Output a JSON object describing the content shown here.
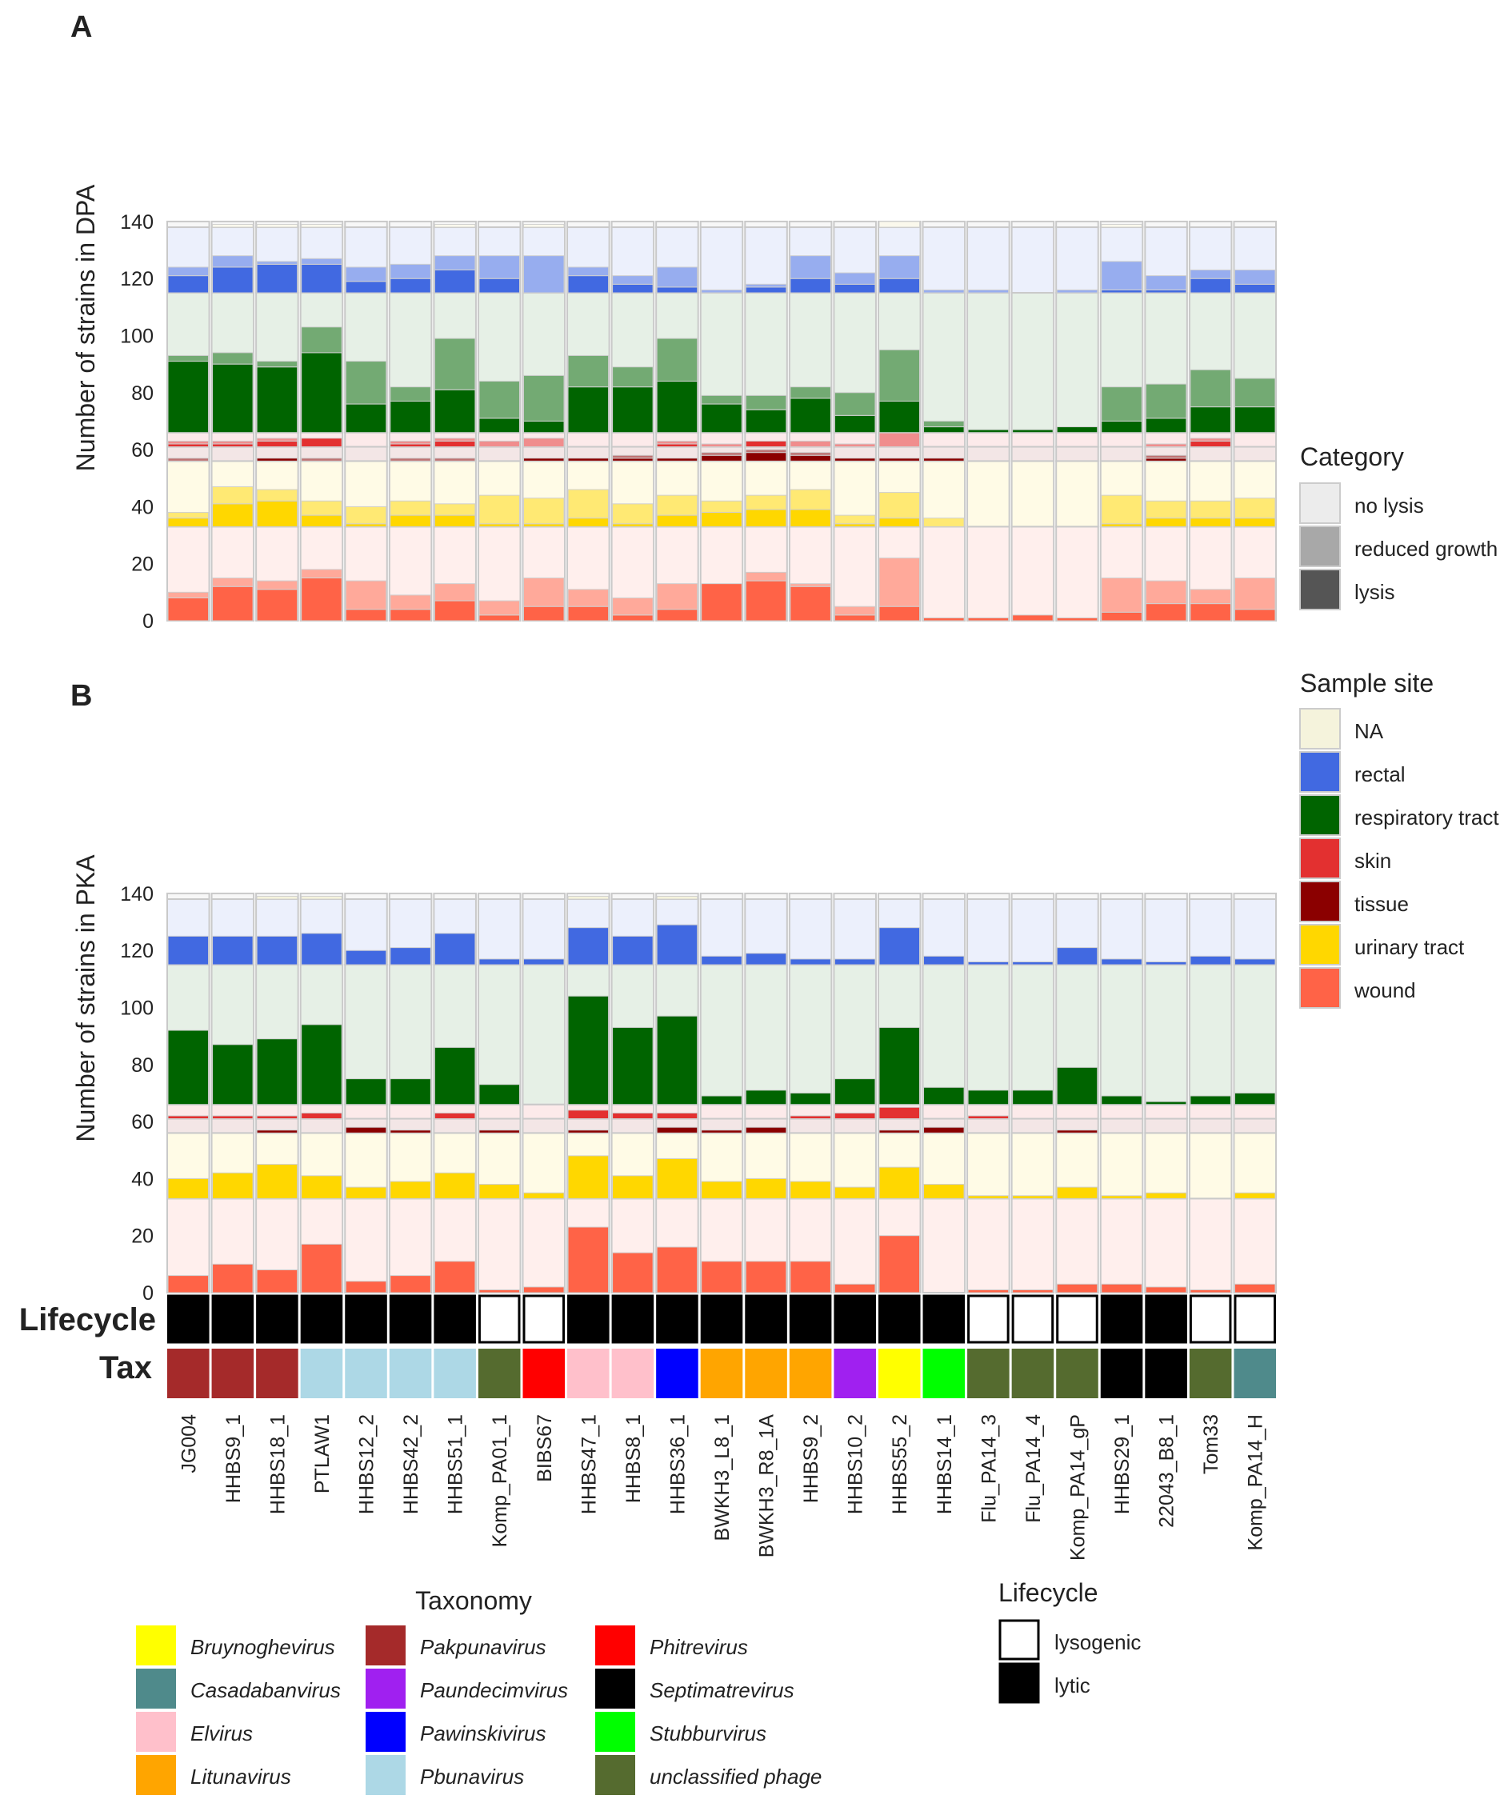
{
  "panels": [
    {
      "label": "A",
      "ylabel": "Number of strains in DPA"
    },
    {
      "label": "B",
      "ylabel": "Number of strains in PKA"
    }
  ],
  "row_labels": {
    "lifecycle": "Lifecycle",
    "tax": "Tax"
  },
  "legends": {
    "category": {
      "title": "Category",
      "items": [
        {
          "label": "no lysis",
          "color": "#ececec"
        },
        {
          "label": "reduced growth",
          "color": "#a8a8a8"
        },
        {
          "label": "lysis",
          "color": "#555555"
        }
      ]
    },
    "sample_site": {
      "title": "Sample site",
      "items": [
        {
          "label": "NA",
          "color": "#f5f3dc"
        },
        {
          "label": "rectal",
          "color": "#4169e1"
        },
        {
          "label": "respiratory tract",
          "color": "#006400"
        },
        {
          "label": "skin",
          "color": "#e33030"
        },
        {
          "label": "tissue",
          "color": "#8b0000"
        },
        {
          "label": "urinary tract",
          "color": "#ffd700"
        },
        {
          "label": "wound",
          "color": "#ff6347"
        }
      ]
    },
    "taxonomy": {
      "title": "Taxonomy",
      "items": [
        {
          "label": "Bruynoghevirus",
          "color": "#ffff00"
        },
        {
          "label": "Casadabanvirus",
          "color": "#4f8a8b"
        },
        {
          "label": "Elvirus",
          "color": "#ffc0cb"
        },
        {
          "label": "Litunavirus",
          "color": "#ffa500"
        },
        {
          "label": "Pakpunavirus",
          "color": "#a52a2a"
        },
        {
          "label": "Paundecimvirus",
          "color": "#a020f0"
        },
        {
          "label": "Pawinskivirus",
          "color": "#0000ff"
        },
        {
          "label": "Pbunavirus",
          "color": "#add8e6"
        },
        {
          "label": "Phitrevirus",
          "color": "#ff0000"
        },
        {
          "label": "Septimatrevirus",
          "color": "#000000"
        },
        {
          "label": "Stubburvirus",
          "color": "#00ff00"
        },
        {
          "label": "unclassified phage",
          "color": "#556b2f"
        }
      ]
    },
    "lifecycle": {
      "title": "Lifecycle",
      "items": [
        {
          "label": "lysogenic",
          "color": "#ffffff"
        },
        {
          "label": "lytic",
          "color": "#000000"
        }
      ]
    }
  },
  "chart_data": {
    "type": "bar",
    "subtype": "stacked-faceted",
    "ylim": [
      0,
      140
    ],
    "yticks": [
      0,
      20,
      40,
      60,
      80,
      100,
      120,
      140
    ],
    "site_order": [
      "wound",
      "urinary tract",
      "tissue",
      "skin",
      "respiratory tract",
      "rectal",
      "NA"
    ],
    "site_totals": {
      "wound": 33,
      "urinary tract": 23,
      "tissue": 5,
      "skin": 5,
      "respiratory tract": 49,
      "rectal": 23,
      "NA": 2
    },
    "categories": [
      "JG004",
      "HHBS9_1",
      "HHBS18_1",
      "PTLAW1",
      "HHBS12_2",
      "HHBS42_2",
      "HHBS51_1",
      "Komp_PA01_1",
      "BIBS67",
      "HHBS47_1",
      "HHBS8_1",
      "HHBS36_1",
      "BWKH3_L8_1",
      "BWKH3_R8_1A",
      "HHBS9_2",
      "HHBS10_2",
      "HHBS55_2",
      "HHBS14_1",
      "Flu_PA14_3",
      "Flu_PA14_4",
      "Komp_PA14_gP",
      "HHBS29_1",
      "22043_B8_1",
      "Tom33",
      "Komp_PA14_H"
    ],
    "label_colors": [
      "#3a8fbf",
      "#3a8fbf",
      "#3a8fbf",
      "#3a8fbf",
      "#3a8fbf",
      "#3a8fbf",
      "#3a8fbf",
      "#3a8fbf",
      "#3a8fbf",
      "#6a2c91",
      "#6a2c91",
      "#6a2c91",
      "#3c6e1f",
      "#3c6e1f",
      "#3c6e1f",
      "#3c6e1f",
      "#3c6e1f",
      "#3c6e1f",
      "#3c6e1f",
      "#3c6e1f",
      "#3c6e1f",
      "#8b1a1a",
      "#8b1a1a",
      "#8b1a1a",
      "#8b1a1a"
    ],
    "lifecycle": [
      "lytic",
      "lytic",
      "lytic",
      "lytic",
      "lytic",
      "lytic",
      "lytic",
      "lysogenic",
      "lysogenic",
      "lytic",
      "lytic",
      "lytic",
      "lytic",
      "lytic",
      "lytic",
      "lytic",
      "lytic",
      "lytic",
      "lysogenic",
      "lysogenic",
      "lysogenic",
      "lytic",
      "lytic",
      "lysogenic",
      "lysogenic"
    ],
    "taxonomy": [
      "Pakpunavirus",
      "Pakpunavirus",
      "Pakpunavirus",
      "Pbunavirus",
      "Pbunavirus",
      "Pbunavirus",
      "Pbunavirus",
      "unclassified phage",
      "Phitrevirus",
      "Elvirus",
      "Elvirus",
      "Pawinskivirus",
      "Litunavirus",
      "Litunavirus",
      "Litunavirus",
      "Paundecimvirus",
      "Bruynoghevirus",
      "Stubburvirus",
      "unclassified phage",
      "unclassified phage",
      "unclassified phage",
      "Septimatrevirus",
      "Septimatrevirus",
      "unclassified phage",
      "Casadabanvirus"
    ],
    "panel_A_DPA": {
      "wound": {
        "lysis": [
          8,
          12,
          11,
          15,
          4,
          4,
          7,
          2,
          5,
          5,
          2,
          4,
          13,
          14,
          12,
          2,
          5,
          1,
          1,
          2,
          1,
          3,
          6,
          6,
          4
        ],
        "reduced": [
          2,
          3,
          3,
          3,
          10,
          5,
          6,
          5,
          10,
          6,
          6,
          9,
          0,
          3,
          1,
          3,
          17,
          0,
          0,
          0,
          0,
          12,
          8,
          5,
          11
        ]
      },
      "urinary tract": {
        "lysis": [
          3,
          8,
          9,
          4,
          1,
          4,
          4,
          1,
          1,
          3,
          1,
          4,
          5,
          6,
          6,
          1,
          3,
          0,
          0,
          0,
          0,
          1,
          3,
          3,
          3
        ],
        "reduced": [
          2,
          6,
          4,
          5,
          6,
          5,
          4,
          10,
          9,
          10,
          7,
          7,
          4,
          5,
          7,
          3,
          9,
          3,
          0,
          0,
          0,
          10,
          6,
          6,
          7
        ]
      },
      "tissue": {
        "lysis": [
          0,
          0,
          1,
          0,
          0,
          0,
          0,
          0,
          1,
          1,
          1,
          1,
          2,
          3,
          2,
          1,
          1,
          1,
          0,
          0,
          0,
          0,
          1,
          0,
          0
        ],
        "reduced": [
          1,
          0,
          0,
          1,
          0,
          1,
          1,
          0,
          0,
          0,
          1,
          0,
          1,
          1,
          1,
          0,
          0,
          0,
          0,
          0,
          0,
          0,
          1,
          0,
          0
        ]
      },
      "skin": {
        "lysis": [
          1,
          1,
          2,
          3,
          0,
          1,
          2,
          0,
          0,
          0,
          0,
          1,
          0,
          2,
          0,
          0,
          0,
          0,
          0,
          0,
          0,
          0,
          0,
          2,
          0
        ],
        "reduced": [
          1,
          1,
          1,
          0,
          0,
          1,
          1,
          2,
          3,
          0,
          0,
          1,
          1,
          0,
          2,
          1,
          5,
          0,
          0,
          0,
          0,
          0,
          1,
          1,
          0
        ]
      },
      "respiratory tract": {
        "lysis": [
          25,
          24,
          23,
          28,
          10,
          11,
          15,
          5,
          4,
          16,
          16,
          18,
          10,
          8,
          12,
          6,
          11,
          2,
          1,
          1,
          2,
          4,
          5,
          9,
          9
        ],
        "reduced": [
          2,
          4,
          2,
          9,
          15,
          5,
          18,
          13,
          16,
          11,
          7,
          15,
          3,
          5,
          4,
          8,
          18,
          2,
          0,
          0,
          0,
          12,
          12,
          13,
          10
        ]
      },
      "rectal": {
        "lysis": [
          6,
          9,
          10,
          10,
          4,
          5,
          8,
          5,
          0,
          6,
          3,
          2,
          0,
          2,
          5,
          3,
          5,
          0,
          0,
          0,
          0,
          1,
          1,
          5,
          3
        ],
        "reduced": [
          3,
          4,
          1,
          2,
          5,
          5,
          5,
          8,
          13,
          3,
          3,
          7,
          1,
          1,
          8,
          4,
          8,
          1,
          1,
          0,
          1,
          10,
          5,
          3,
          5
        ]
      },
      "NA": {
        "lysis": [
          0,
          0,
          0,
          0,
          0,
          0,
          0,
          0,
          0,
          0,
          0,
          0,
          0,
          0,
          0,
          0,
          0,
          0,
          0,
          0,
          0,
          0,
          0,
          0,
          0
        ],
        "reduced": [
          0,
          1,
          1,
          1,
          0,
          0,
          1,
          0,
          1,
          0,
          0,
          0,
          0,
          0,
          0,
          0,
          2,
          0,
          0,
          0,
          0,
          1,
          0,
          0,
          0
        ]
      }
    },
    "panel_B_PKA": {
      "wound": {
        "lysis": [
          6,
          10,
          8,
          17,
          4,
          6,
          11,
          1,
          2,
          23,
          14,
          16,
          11,
          11,
          11,
          3,
          20,
          0,
          1,
          1,
          3,
          3,
          2,
          1,
          3
        ],
        "reduced": [
          0,
          0,
          0,
          0,
          0,
          0,
          0,
          0,
          0,
          0,
          0,
          0,
          0,
          0,
          0,
          0,
          0,
          0,
          0,
          0,
          0,
          0,
          0,
          0,
          0
        ]
      },
      "urinary tract": {
        "lysis": [
          7,
          9,
          12,
          8,
          4,
          6,
          9,
          5,
          2,
          15,
          8,
          14,
          6,
          7,
          6,
          4,
          11,
          5,
          1,
          1,
          4,
          1,
          2,
          0,
          2
        ],
        "reduced": [
          0,
          0,
          0,
          0,
          0,
          0,
          0,
          0,
          0,
          0,
          0,
          0,
          0,
          0,
          0,
          0,
          0,
          0,
          0,
          0,
          0,
          0,
          0,
          0,
          0
        ]
      },
      "tissue": {
        "lysis": [
          0,
          0,
          1,
          0,
          2,
          1,
          0,
          1,
          0,
          1,
          0,
          2,
          1,
          2,
          0,
          0,
          1,
          2,
          0,
          0,
          1,
          0,
          0,
          0,
          0
        ],
        "reduced": [
          0,
          0,
          0,
          0,
          0,
          0,
          0,
          0,
          0,
          0,
          0,
          0,
          0,
          0,
          0,
          0,
          0,
          0,
          0,
          0,
          0,
          0,
          0,
          0,
          0
        ]
      },
      "skin": {
        "lysis": [
          1,
          1,
          1,
          2,
          0,
          0,
          2,
          0,
          0,
          3,
          2,
          2,
          0,
          0,
          1,
          2,
          4,
          0,
          1,
          0,
          0,
          0,
          0,
          0,
          0
        ],
        "reduced": [
          0,
          0,
          0,
          0,
          0,
          0,
          0,
          0,
          0,
          0,
          0,
          0,
          0,
          0,
          0,
          0,
          0,
          0,
          0,
          0,
          0,
          0,
          0,
          0,
          0
        ]
      },
      "respiratory tract": {
        "lysis": [
          26,
          21,
          23,
          28,
          9,
          9,
          20,
          7,
          0,
          38,
          27,
          31,
          3,
          5,
          4,
          9,
          27,
          6,
          5,
          5,
          13,
          3,
          1,
          3,
          4
        ],
        "reduced": [
          0,
          0,
          0,
          0,
          0,
          0,
          0,
          0,
          0,
          0,
          0,
          0,
          0,
          0,
          0,
          0,
          0,
          0,
          0,
          0,
          0,
          0,
          0,
          0,
          0
        ]
      },
      "rectal": {
        "lysis": [
          10,
          10,
          10,
          11,
          5,
          6,
          11,
          2,
          2,
          13,
          10,
          14,
          3,
          4,
          2,
          2,
          13,
          3,
          1,
          1,
          6,
          2,
          1,
          3,
          2
        ],
        "reduced": [
          0,
          0,
          0,
          0,
          0,
          0,
          0,
          0,
          0,
          0,
          0,
          0,
          0,
          0,
          0,
          0,
          0,
          0,
          0,
          0,
          0,
          0,
          0,
          0,
          0
        ]
      },
      "NA": {
        "lysis": [
          0,
          0,
          1,
          1,
          0,
          0,
          0,
          0,
          0,
          1,
          0,
          1,
          0,
          0,
          0,
          0,
          0,
          0,
          0,
          0,
          0,
          0,
          0,
          0,
          0
        ],
        "reduced": [
          0,
          0,
          0,
          0,
          0,
          0,
          0,
          0,
          0,
          0,
          0,
          0,
          0,
          0,
          0,
          0,
          0,
          0,
          0,
          0,
          0,
          0,
          0,
          0,
          0
        ]
      }
    }
  }
}
